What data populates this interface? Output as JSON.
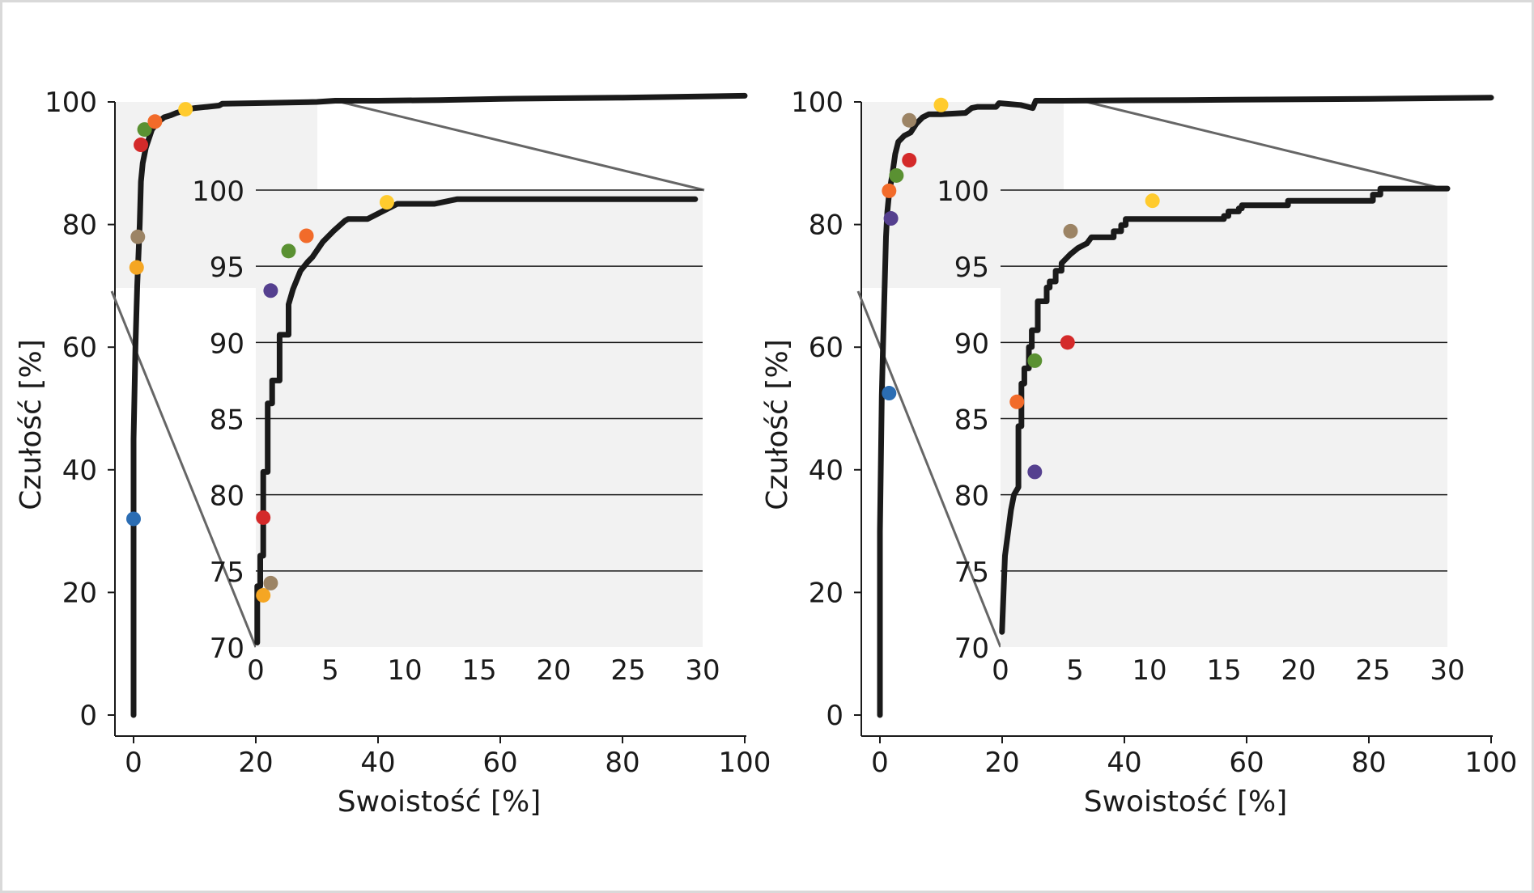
{
  "colors": {
    "curve": "#1a1a1a",
    "inset_background": "#f2f2f2",
    "connector": "#666666",
    "gridline": "#1a1a1a"
  },
  "chart_data": [
    {
      "type": "line",
      "xlabel": "Swoistość [%]",
      "ylabel": "Czułość [%]",
      "xlim": [
        0,
        100
      ],
      "ylim": [
        0,
        100
      ],
      "xticks": [
        0,
        20,
        40,
        60,
        80,
        100
      ],
      "yticks": [
        0,
        20,
        40,
        60,
        80,
        100
      ],
      "zoom_region": {
        "x": [
          0,
          30
        ],
        "y": [
          70,
          100
        ]
      },
      "curve": {
        "x": [
          0,
          0,
          0.3,
          0.6,
          1,
          1.2,
          1.5,
          2,
          2.5,
          3,
          4,
          5,
          6,
          7,
          8,
          9,
          10,
          12,
          14,
          14.5,
          20,
          30,
          33,
          40,
          50,
          60,
          80,
          100
        ],
        "y": [
          0,
          45,
          60,
          70,
          80,
          87,
          90,
          92.5,
          94,
          95.5,
          96.7,
          97.5,
          97.8,
          98.2,
          98.5,
          98.8,
          99,
          99.2,
          99.4,
          99.7,
          99.8,
          100,
          100.2,
          100.2,
          100.3,
          100.5,
          100.7,
          101
        ]
      },
      "points": [
        {
          "color": "#2b6db3",
          "x": 0,
          "y": 32
        },
        {
          "color": "#f5a623",
          "x": 0.5,
          "y": 73
        },
        {
          "color": "#9c8465",
          "x": 0.7,
          "y": 78
        },
        {
          "color": "#d42a2a",
          "x": 1.2,
          "y": 93
        },
        {
          "color": "#5a9132",
          "x": 1.8,
          "y": 95.5
        },
        {
          "color": "#f26b2a",
          "x": 3.5,
          "y": 96.8
        },
        {
          "color": "#ffcb2e",
          "x": 8.5,
          "y": 98.8
        }
      ],
      "inset": {
        "xlim": [
          0,
          30
        ],
        "ylim": [
          70,
          100
        ],
        "xticks": [
          0,
          5,
          10,
          15,
          20,
          25,
          30
        ],
        "yticks": [
          70,
          75,
          80,
          85,
          90,
          95,
          100
        ],
        "curve": {
          "x": [
            0.1,
            0.1,
            0.3,
            0.3,
            0.5,
            0.5,
            0.8,
            0.8,
            1.1,
            1.1,
            1.6,
            1.6,
            2.2,
            2.2,
            2.5,
            3,
            3.5,
            3.8,
            4.5,
            5.2,
            6,
            6.2,
            7.5,
            8.5,
            9.5,
            12,
            13.5,
            29.5
          ],
          "y": [
            70.3,
            74,
            74,
            76,
            76,
            81.5,
            81.5,
            86,
            86,
            87.5,
            87.5,
            90.5,
            90.5,
            92.5,
            93.5,
            94.7,
            95.3,
            95.6,
            96.6,
            97.3,
            98,
            98.1,
            98.1,
            98.6,
            99.1,
            99.1,
            99.4,
            99.4
          ]
        },
        "points": [
          {
            "color": "#f5a623",
            "x": 0.5,
            "y": 73.4
          },
          {
            "color": "#9c8465",
            "x": 1,
            "y": 74.2
          },
          {
            "color": "#d42a2a",
            "x": 0.5,
            "y": 78.5
          },
          {
            "color": "#55408f",
            "x": 1,
            "y": 93.4
          },
          {
            "color": "#5a9132",
            "x": 2.2,
            "y": 96
          },
          {
            "color": "#f26b2a",
            "x": 3.4,
            "y": 97
          },
          {
            "color": "#ffcb2e",
            "x": 8.8,
            "y": 99.2
          }
        ]
      }
    },
    {
      "type": "line",
      "xlabel": "Swoistość [%]",
      "ylabel": "Czułość [%]",
      "xlim": [
        0,
        100
      ],
      "ylim": [
        0,
        100
      ],
      "xticks": [
        0,
        20,
        40,
        60,
        80,
        100
      ],
      "yticks": [
        0,
        20,
        40,
        60,
        80,
        100
      ],
      "zoom_region": {
        "x": [
          0,
          30
        ],
        "y": [
          70,
          100
        ]
      },
      "curve": {
        "x": [
          0,
          0,
          0.3,
          0.5,
          1,
          1.2,
          1.5,
          2,
          2.5,
          3,
          4,
          5,
          6,
          7,
          8,
          10,
          14,
          15,
          16,
          19,
          19.5,
          23,
          25,
          25.5,
          30,
          50,
          80,
          100
        ],
        "y": [
          0,
          30,
          52,
          60,
          78,
          82,
          85,
          88,
          91.5,
          93.5,
          94.5,
          95,
          96.5,
          97.5,
          98,
          98,
          98.2,
          99,
          99.2,
          99.2,
          99.8,
          99.5,
          99,
          100.2,
          100.2,
          100.3,
          100.5,
          100.7
        ]
      },
      "points": [
        {
          "color": "#2b6db3",
          "x": 1.5,
          "y": 52.5
        },
        {
          "color": "#55408f",
          "x": 1.8,
          "y": 81
        },
        {
          "color": "#f26b2a",
          "x": 1.5,
          "y": 85.5
        },
        {
          "color": "#5a9132",
          "x": 2.7,
          "y": 88
        },
        {
          "color": "#d42a2a",
          "x": 4.8,
          "y": 90.5
        },
        {
          "color": "#9c8465",
          "x": 4.8,
          "y": 97
        },
        {
          "color": "#ffcb2e",
          "x": 10,
          "y": 99.5
        }
      ],
      "inset": {
        "xlim": [
          0,
          30
        ],
        "ylim": [
          70,
          100
        ],
        "xticks": [
          0,
          5,
          10,
          15,
          20,
          25,
          30
        ],
        "yticks": [
          70,
          75,
          80,
          85,
          90,
          95,
          100
        ],
        "curve": {
          "x": [
            0.1,
            0.3,
            0.5,
            0.5,
            0.7,
            0.9,
            1.2,
            1.2,
            1.4,
            1.4,
            1.6,
            1.6,
            1.9,
            1.9,
            2.1,
            2.1,
            2.5,
            2.5,
            3.1,
            3.1,
            3.3,
            3.3,
            3.7,
            3.7,
            4.1,
            4.1,
            4.7,
            5.2,
            5.8,
            6.1,
            6.1,
            7.6,
            7.6,
            8.1,
            8.1,
            8.4,
            8.4,
            15,
            15,
            15.3,
            15.3,
            16,
            16,
            16.2,
            16.2,
            19.3,
            19.3,
            25,
            25,
            25.5,
            25.5,
            30
          ],
          "y": [
            71,
            76,
            77.5,
            77.5,
            79,
            80,
            80.5,
            84.5,
            84.5,
            87.3,
            87.3,
            88.3,
            88.3,
            89.7,
            89.7,
            90.8,
            90.8,
            92.7,
            92.7,
            93.6,
            93.6,
            94,
            94,
            94.7,
            94.7,
            95.2,
            95.8,
            96.2,
            96.5,
            96.9,
            96.9,
            96.9,
            97.3,
            97.3,
            97.7,
            97.7,
            98.1,
            98.1,
            98.3,
            98.3,
            98.6,
            98.6,
            98.8,
            98.8,
            99,
            99,
            99.3,
            99.3,
            99.7,
            99.7,
            100.1,
            100.1
          ]
        },
        "points": [
          {
            "color": "#55408f",
            "x": 2.3,
            "y": 81.5
          },
          {
            "color": "#f26b2a",
            "x": 1.1,
            "y": 86.1
          },
          {
            "color": "#5a9132",
            "x": 2.3,
            "y": 88.8
          },
          {
            "color": "#d42a2a",
            "x": 4.5,
            "y": 90
          },
          {
            "color": "#9c8465",
            "x": 4.7,
            "y": 97.3
          },
          {
            "color": "#ffcb2e",
            "x": 10.2,
            "y": 99.3
          }
        ]
      }
    }
  ]
}
